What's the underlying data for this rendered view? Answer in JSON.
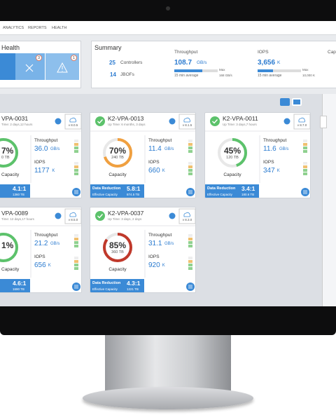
{
  "nav": {
    "items": [
      "ANALYTICS",
      "REPORTS",
      "HEALTH"
    ]
  },
  "health": {
    "title": "Health",
    "badges": [
      "3",
      "1"
    ]
  },
  "summary": {
    "title": "Summary",
    "controllers": {
      "count": "25",
      "label": "Controllers"
    },
    "jbofs": {
      "count": "14",
      "label": "JBOFs"
    },
    "throughput": {
      "label": "Throughput",
      "value": "108.7",
      "unit": "GB/s",
      "note": "15 min average",
      "max_label": "Max",
      "max": "168 GB/s"
    },
    "iops": {
      "label": "IOPS",
      "value": "3,656",
      "unit": "K",
      "note": "15 min average",
      "max_label": "Max",
      "max": "10,000 K"
    },
    "capacity": {
      "label": "Cap"
    }
  },
  "cards": [
    {
      "name": "VPA-0031",
      "uptime": "Time: 2 days,12 hours",
      "version": "v 8.0.5",
      "capacity": {
        "label": "7%"
      },
      "capacity_size": "0 TB",
      "capacity_label": "Capacity",
      "throughput_label": "Throughput",
      "throughput": "36.0",
      "throughput_unit": "GB/s",
      "iops_label": "IOPS",
      "iops": "1177",
      "iops_unit": "K",
      "data_reduction": "4.1:1",
      "effective_capacity": "1360 TB"
    },
    {
      "name": "K2-VPA-0013",
      "uptime": "Up Time: 6 months, 3 days",
      "version": "v 8.1.5",
      "capacity": {
        "value": 70,
        "label": "70%"
      },
      "capacity_size": "240 TB",
      "capacity_label": "Capacity",
      "throughput_label": "Throughput",
      "throughput": "11.4",
      "throughput_unit": "GB/s",
      "iops_label": "IOPS",
      "iops": "660",
      "iops_unit": "K",
      "data_reduction_label": "Data Reduction",
      "data_reduction": "5.8:1",
      "effective_capacity_label": "Effective Capacity",
      "effective_capacity": "874.5 TB"
    },
    {
      "name": "K2-VPA-0011",
      "uptime": "Up Time: 3 days,7 hours",
      "version": "v 8.7.0",
      "capacity": {
        "value": 45,
        "label": "45%"
      },
      "capacity_size": "120 TB",
      "capacity_label": "Capacity",
      "throughput_label": "Throughput",
      "throughput": "11.6",
      "throughput_unit": "GB/s",
      "iops_label": "IOPS",
      "iops": "347",
      "iops_unit": "K",
      "data_reduction_label": "Data Reduction",
      "data_reduction": "3.4:1",
      "effective_capacity_label": "Effective Capacity",
      "effective_capacity": "180.6 TB"
    },
    {
      "name": "VPA-0089",
      "uptime": "Time: 12 days,17 hours",
      "version": "v 8.5.0",
      "capacity": {
        "label": "1%"
      },
      "capacity_label": "Capacity",
      "throughput_label": "Throughput",
      "throughput": "21.2",
      "throughput_unit": "GB/s",
      "iops_label": "IOPS",
      "iops": "656",
      "iops_unit": "K",
      "data_reduction": "4.6:1",
      "effective_capacity": "1690 TB"
    },
    {
      "name": "K2-VPA-0037",
      "uptime": "Up Time: 3 days, 2 days",
      "version": "v 8.3.0",
      "capacity": {
        "value": 85,
        "label": "85%"
      },
      "capacity_size": "360 TB",
      "capacity_label": "Capacity",
      "throughput_label": "Throughput",
      "throughput": "31.1",
      "throughput_unit": "GB/s",
      "iops_label": "IOPS",
      "iops": "920",
      "iops_unit": "K",
      "data_reduction_label": "Data Reduction",
      "data_reduction": "4.3:1",
      "effective_capacity_label": "Effective Capacity",
      "effective_capacity": "1221 TB"
    }
  ]
}
